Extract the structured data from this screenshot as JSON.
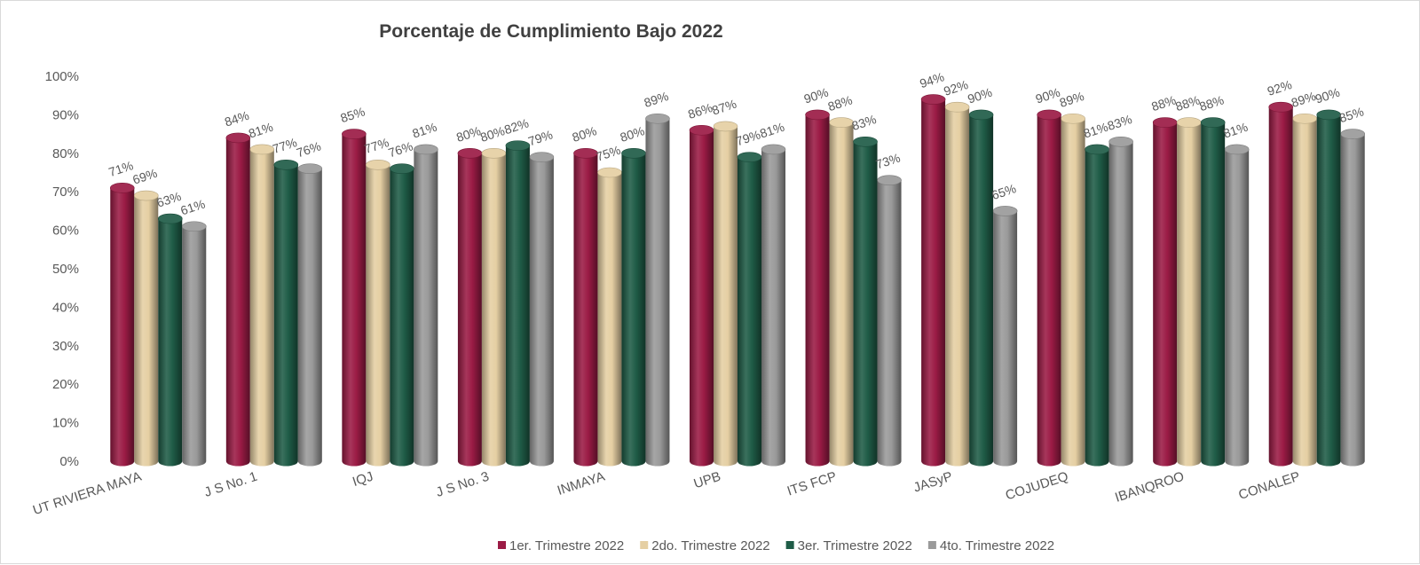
{
  "chart_data": {
    "type": "bar",
    "title": "Porcentaje de Cumplimiento Bajo 2022",
    "categories": [
      "UT RIVIERA MAYA",
      "J S No. 1",
      "IQJ",
      "J S No. 3",
      "INMAYA",
      "UPB",
      "ITS FCP",
      "JASyP",
      "COJUDEQ",
      "IBANQROO",
      "CONALEP"
    ],
    "series": [
      {
        "name": "1er. Trimestre 2022",
        "color": "#9b1b45",
        "values": [
          71,
          84,
          85,
          80,
          80,
          86,
          90,
          94,
          90,
          88,
          92
        ]
      },
      {
        "name": "2do. Trimestre 2022",
        "color": "#e5cfa3",
        "values": [
          69,
          81,
          77,
          80,
          75,
          87,
          88,
          92,
          89,
          88,
          89
        ]
      },
      {
        "name": "3er. Trimestre 2022",
        "color": "#1f5c47",
        "values": [
          63,
          77,
          76,
          82,
          80,
          79,
          83,
          90,
          81,
          88,
          90
        ]
      },
      {
        "name": "4to. Trimestre 2022",
        "color": "#9a9a9a",
        "values": [
          61,
          76,
          81,
          79,
          89,
          81,
          73,
          65,
          83,
          81,
          85
        ]
      }
    ],
    "data_labels": [
      [
        "71%",
        "84%",
        "85%",
        "80%",
        "80%",
        "86%",
        "90%",
        "94%",
        "90%",
        "88%",
        "92%"
      ],
      [
        "69%",
        "81%",
        "77%",
        "80%",
        "75%",
        "87%",
        "88%",
        "92%",
        "89%",
        "88%",
        "89%"
      ],
      [
        "63%",
        "77%",
        "76%",
        "82%",
        "80%",
        "79%",
        "83%",
        "90%",
        "81%",
        "88%",
        "90%"
      ],
      [
        "61%",
        "76%",
        "81%",
        "79%",
        "89%",
        "81%",
        "73%",
        "65%",
        "83%",
        "81%",
        "85%"
      ]
    ],
    "y_ticks": [
      "0%",
      "10%",
      "20%",
      "30%",
      "40%",
      "50%",
      "60%",
      "70%",
      "80%",
      "90%",
      "100%"
    ],
    "ylim": [
      0,
      100
    ],
    "grid": false,
    "legend_position": "bottom",
    "bar_style": "3d-cylinder"
  }
}
